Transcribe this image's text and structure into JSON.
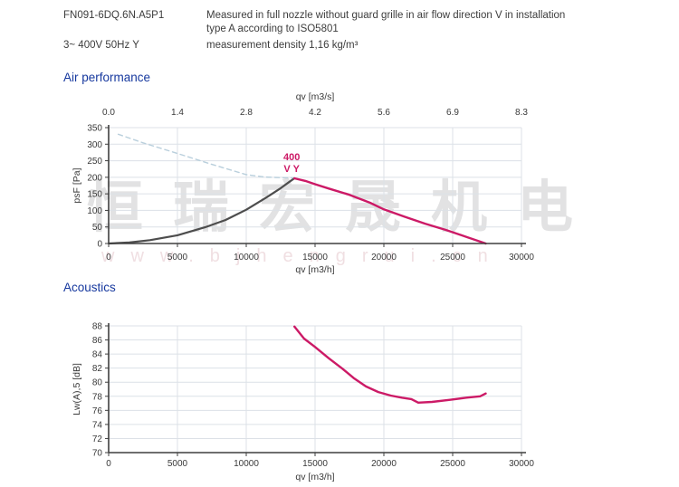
{
  "header": {
    "model": "FN091-6DQ.6N.A5P1",
    "power": "3~ 400V 50Hz Y",
    "measurement_note_line1": "Measured in full nozzle without guard grille in air flow direction V in installation",
    "measurement_note_line2": "type A according to ISO5801",
    "density_note": "measurement density 1,16 kg/m³"
  },
  "sections": {
    "air": "Air performance",
    "acoustics": "Acoustics"
  },
  "watermark": {
    "cn": "恒瑞宏晟机电",
    "url": "www.bjhengrui.cn"
  },
  "colors": {
    "accent_blue": "#16389e",
    "curve_magenta": "#cc1a66",
    "curve_gray": "#4d4d4d",
    "dashed_blue": "#b9cfdc",
    "grid": "#dce1e7",
    "axis": "#3f3f3f"
  },
  "chart_data": [
    {
      "id": "air",
      "type": "line",
      "title": "Air performance",
      "xlabel": "qv [m3/h]",
      "ylabel": "psF [Pa]",
      "top_axis_label": "qv [m3/s]",
      "xlim": [
        0,
        30000
      ],
      "ylim": [
        0,
        350
      ],
      "xticks": [
        0,
        5000,
        10000,
        15000,
        20000,
        25000,
        30000
      ],
      "top_xticks": [
        "0.0",
        "1.4",
        "2.8",
        "4.2",
        "5.6",
        "6.9",
        "8.3"
      ],
      "yticks": [
        0,
        50,
        100,
        150,
        200,
        250,
        300,
        350
      ],
      "grid": true,
      "annotation": {
        "line1": "400",
        "line2": "V Y",
        "x": 13500,
        "y": 197,
        "color": "#cc1a66"
      },
      "series": [
        {
          "name": "dashed-guide-line",
          "color": "#b9cfdc",
          "width": 1.4,
          "dash": "5 4",
          "points": [
            [
              700,
              330
            ],
            [
              2500,
              304
            ],
            [
              5000,
              272
            ],
            [
              7500,
              239
            ],
            [
              10000,
              208
            ],
            [
              11300,
              201
            ],
            [
              12400,
              199
            ],
            [
              13500,
              198
            ]
          ]
        },
        {
          "name": "fan-curve-gray-extension",
          "color": "#4d4d4d",
          "width": 2.2,
          "points": [
            [
              0,
              0
            ],
            [
              1500,
              3
            ],
            [
              3000,
              10
            ],
            [
              5000,
              25
            ],
            [
              7000,
              49
            ],
            [
              8500,
              71
            ],
            [
              10000,
              102
            ],
            [
              11500,
              140
            ],
            [
              12500,
              167
            ],
            [
              13200,
              188
            ],
            [
              13500,
              197
            ]
          ]
        },
        {
          "name": "fan-curve-400V",
          "color": "#cc1a66",
          "width": 2.4,
          "points": [
            [
              13500,
              197
            ],
            [
              14300,
              189
            ],
            [
              15000,
              179
            ],
            [
              16000,
              166
            ],
            [
              17500,
              147
            ],
            [
              19000,
              123
            ],
            [
              20000,
              103
            ],
            [
              21500,
              81
            ],
            [
              23000,
              60
            ],
            [
              24500,
              41
            ],
            [
              26000,
              20
            ],
            [
              27400,
              0
            ]
          ]
        }
      ]
    },
    {
      "id": "acoustics",
      "type": "line",
      "title": "Acoustics",
      "xlabel": "qv [m3/h]",
      "ylabel": "Lw(A),5 [dB]",
      "xlim": [
        0,
        30000
      ],
      "ylim": [
        70,
        88
      ],
      "xticks": [
        0,
        5000,
        10000,
        15000,
        20000,
        25000,
        30000
      ],
      "yticks": [
        70,
        72,
        74,
        76,
        78,
        80,
        82,
        84,
        86,
        88
      ],
      "grid": true,
      "series": [
        {
          "name": "noise-curve-400V",
          "color": "#cc1a66",
          "width": 2.4,
          "points": [
            [
              13500,
              87.9
            ],
            [
              14200,
              86.2
            ],
            [
              15000,
              85.0
            ],
            [
              16000,
              83.4
            ],
            [
              17000,
              81.9
            ],
            [
              17800,
              80.6
            ],
            [
              18700,
              79.4
            ],
            [
              19600,
              78.6
            ],
            [
              20500,
              78.1
            ],
            [
              21300,
              77.8
            ],
            [
              22000,
              77.6
            ],
            [
              22500,
              77.1
            ],
            [
              23500,
              77.2
            ],
            [
              24800,
              77.5
            ],
            [
              26000,
              77.8
            ],
            [
              27000,
              78.0
            ],
            [
              27400,
              78.4
            ]
          ]
        }
      ]
    }
  ]
}
